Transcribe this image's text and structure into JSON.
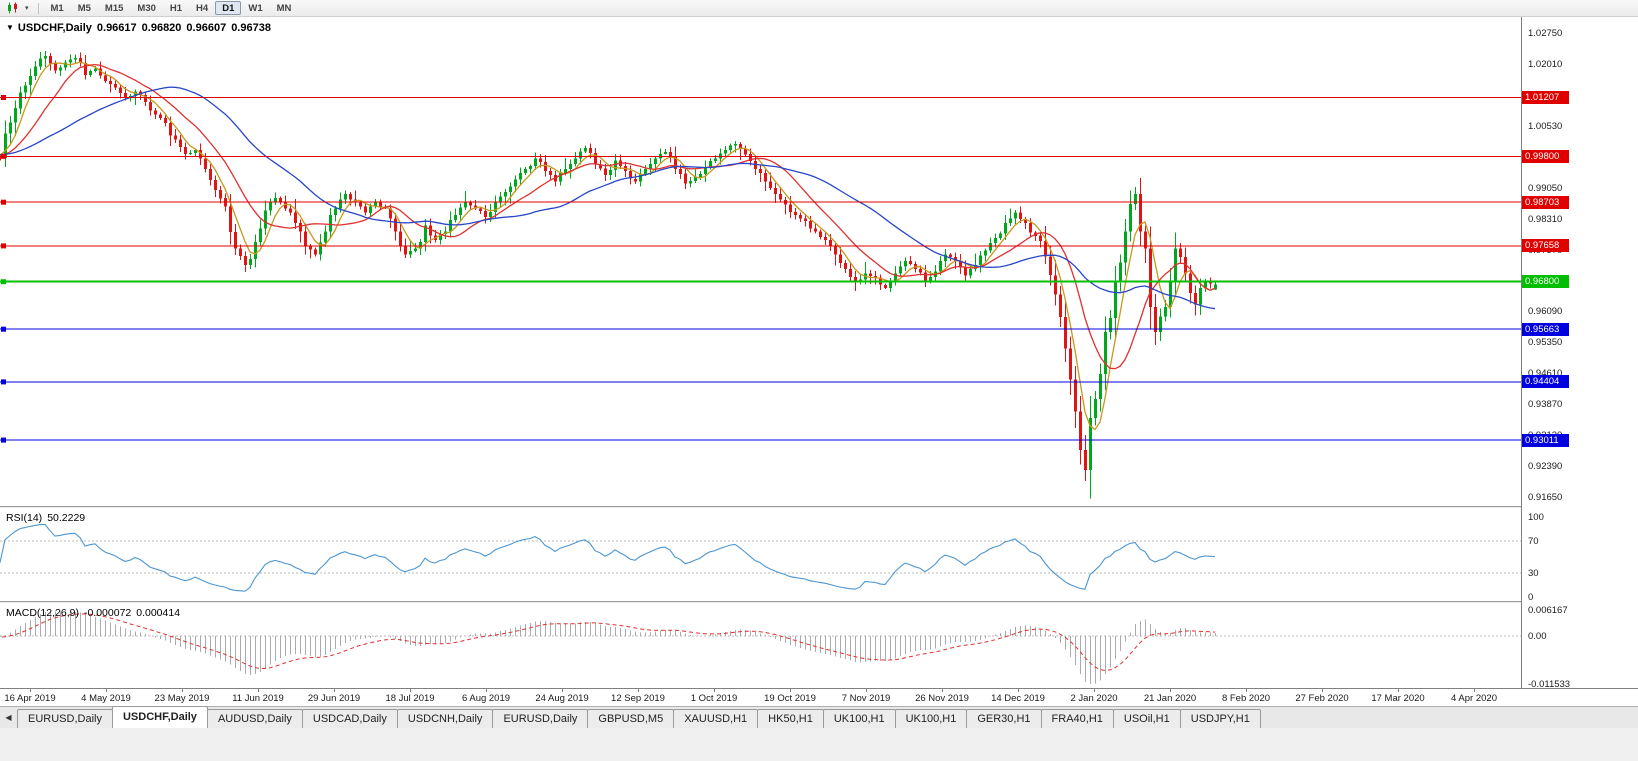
{
  "icons": {
    "collapse_triangle": "▼",
    "dropdown_caret": "▾",
    "tab_scroll_left": "◀"
  },
  "toolbar": {
    "timeframes": [
      {
        "label": "M1",
        "active": false
      },
      {
        "label": "M5",
        "active": false
      },
      {
        "label": "M15",
        "active": false
      },
      {
        "label": "M30",
        "active": false
      },
      {
        "label": "H1",
        "active": false
      },
      {
        "label": "H4",
        "active": false
      },
      {
        "label": "D1",
        "active": true
      },
      {
        "label": "W1",
        "active": false
      },
      {
        "label": "MN",
        "active": false
      }
    ]
  },
  "chart_data": {
    "type": "candlestick",
    "symbol_period": "USDCHF,Daily",
    "ohlc_display": {
      "open": "0.96617",
      "high": "0.96820",
      "low": "0.96607",
      "close": "0.96738"
    },
    "last_candle": {
      "o": 0.96617,
      "h": 0.9682,
      "l": 0.96607,
      "c": 0.96738
    },
    "extremes": {
      "high": 1.0227,
      "low": 0.9161
    },
    "y_axis": {
      "top": 1.0275,
      "bottom": 0.9165,
      "step": 0.0074,
      "labels": [
        "1.02750",
        "1.02010",
        "1.01270",
        "1.00530",
        "0.99790",
        "0.99050",
        "0.98310",
        "0.97570",
        "0.96830",
        "0.96090",
        "0.95350",
        "0.94610",
        "0.93870",
        "0.93130",
        "0.92390",
        "0.91650"
      ]
    },
    "x_labels": [
      "16 Apr 2019",
      "4 May 2019",
      "23 May 2019",
      "11 Jun 2019",
      "29 Jun 2019",
      "18 Jul 2019",
      "6 Aug 2019",
      "24 Aug 2019",
      "12 Sep 2019",
      "1 Oct 2019",
      "19 Oct 2019",
      "7 Nov 2019",
      "26 Nov 2019",
      "14 Dec 2019",
      "2 Jan 2020",
      "21 Jan 2020",
      "8 Feb 2020",
      "27 Feb 2020",
      "17 Mar 2020",
      "4 Apr 2020"
    ],
    "price_path": [
      1.0035,
      1.0095,
      1.015,
      1.0195,
      1.022,
      1.0185,
      1.0205,
      1.0215,
      1.0175,
      1.019,
      1.016,
      1.0145,
      1.012,
      1.0135,
      1.011,
      1.008,
      1.006,
      1.002,
      0.9985,
      0.9995,
      0.995,
      0.99,
      0.986,
      0.976,
      0.972,
      0.9775,
      0.985,
      0.988,
      0.9855,
      0.982,
      0.9765,
      0.9745,
      0.98,
      0.9855,
      0.989,
      0.987,
      0.9845,
      0.987,
      0.9855,
      0.98,
      0.9745,
      0.976,
      0.9815,
      0.978,
      0.98,
      0.984,
      0.987,
      0.9855,
      0.9835,
      0.987,
      0.9895,
      0.9925,
      0.995,
      0.9975,
      0.9945,
      0.992,
      0.995,
      0.9975,
      1.0,
      0.996,
      0.9935,
      0.997,
      0.9945,
      0.992,
      0.995,
      0.9975,
      0.999,
      0.995,
      0.9915,
      0.993,
      0.9955,
      0.9975,
      0.9995,
      1.001,
      0.9985,
      0.995,
      0.992,
      0.989,
      0.9865,
      0.984,
      0.9825,
      0.98,
      0.978,
      0.9745,
      0.971,
      0.968,
      0.97,
      0.969,
      0.9665,
      0.97,
      0.973,
      0.971,
      0.968,
      0.9705,
      0.9745,
      0.973,
      0.9695,
      0.972,
      0.9755,
      0.9785,
      0.982,
      0.9845,
      0.982,
      0.979,
      0.974,
      0.965,
      0.952,
      0.937,
      0.923,
      0.94,
      0.956,
      0.968,
      0.98,
      0.989,
      0.976,
      0.956,
      0.962,
      0.976,
      0.97,
      0.9625,
      0.968,
      0.9674
    ],
    "candle_colors": {
      "bull": "#00A81E",
      "bear": "#E01414"
    },
    "moving_averages": [
      {
        "name": "MA-fast",
        "period": 5,
        "color": "#C8981E"
      },
      {
        "name": "MA-medium",
        "period": 13,
        "color": "#E03030"
      },
      {
        "name": "MA-slow",
        "period": 34,
        "color": "#2846C8"
      }
    ],
    "hlines": [
      {
        "price": 1.01207,
        "label": "1.01207",
        "color": "#E00000",
        "width": 1
      },
      {
        "price": 0.998,
        "label": "0.99800",
        "color": "#E00000",
        "width": 1
      },
      {
        "price": 0.98703,
        "label": "0.98703",
        "color": "#E00000",
        "width": 1
      },
      {
        "price": 0.97658,
        "label": "0.97658",
        "color": "#E00000",
        "width": 1
      },
      {
        "price": 0.968,
        "label": "0.96800",
        "color": "#00BE00",
        "width": 2
      },
      {
        "price": 0.95663,
        "label": "0.95663",
        "color": "#0000E0",
        "width": 1
      },
      {
        "price": 0.94404,
        "label": "0.94404",
        "color": "#0000E0",
        "width": 1
      },
      {
        "price": 0.93011,
        "label": "0.93011",
        "color": "#0000E0",
        "width": 1
      }
    ],
    "rsi": {
      "label": "RSI(14)",
      "value": "50.2229",
      "period": 14,
      "color": "#4C96D2",
      "levels": [
        100,
        70,
        30,
        0
      ]
    },
    "macd": {
      "label": "MACD(12,26,9)",
      "macd_value": "-0.000072",
      "signal_value": "0.000414",
      "fast": 12,
      "slow": 26,
      "signal_period": 9,
      "hist_color": "#ABABAB",
      "signal_color": "#E03030",
      "scale_max": 0.006167,
      "scale_min": -0.011533,
      "scale_labels": [
        "0.006167",
        "0.00",
        "-0.011533"
      ]
    }
  },
  "tabs": [
    {
      "label": "EURUSD,Daily",
      "active": false
    },
    {
      "label": "USDCHF,Daily",
      "active": true
    },
    {
      "label": "AUDUSD,Daily",
      "active": false
    },
    {
      "label": "USDCAD,Daily",
      "active": false
    },
    {
      "label": "USDCNH,Daily",
      "active": false
    },
    {
      "label": "EURUSD,Daily",
      "active": false
    },
    {
      "label": "GBPUSD,M5",
      "active": false
    },
    {
      "label": "XAUUSD,H1",
      "active": false
    },
    {
      "label": "HK50,H1",
      "active": false
    },
    {
      "label": "UK100,H1",
      "active": false
    },
    {
      "label": "UK100,H1",
      "active": false
    },
    {
      "label": "GER30,H1",
      "active": false
    },
    {
      "label": "FRA40,H1",
      "active": false
    },
    {
      "label": "USOil,H1",
      "active": false
    },
    {
      "label": "USDJPY,H1",
      "active": false
    }
  ]
}
